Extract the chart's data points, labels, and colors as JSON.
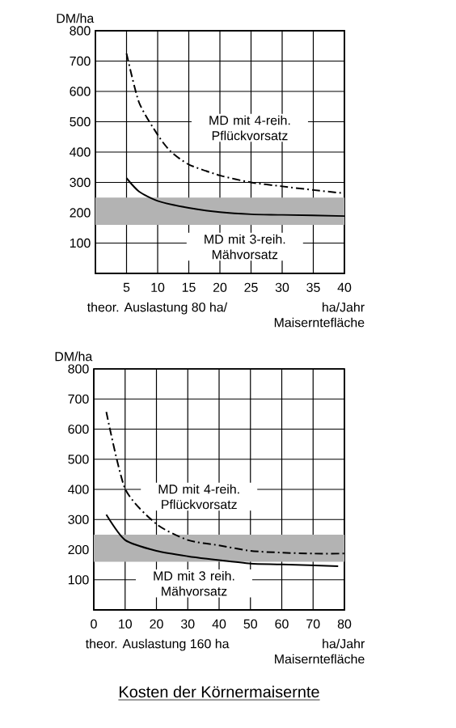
{
  "chart_data": [
    {
      "type": "line",
      "ylabel": "DM/ha",
      "xlabel": "ha/Jahr Maiserntefläche",
      "annotations": [
        "theor. Auslastung 80 ha/"
      ],
      "xlim": [
        0,
        40
      ],
      "ylim": [
        0,
        800
      ],
      "xticks": [
        5,
        10,
        15,
        20,
        25,
        30,
        35,
        40
      ],
      "yticks": [
        100,
        200,
        300,
        400,
        500,
        600,
        700,
        800
      ],
      "grid": true,
      "marker": "none",
      "bands": [
        {
          "axis": "y",
          "from": 160,
          "to": 250,
          "color": "#b3b3b3"
        }
      ],
      "series": [
        {
          "name": "MD mit 4-reih. Pflückvorsatz",
          "color": "#000000",
          "line_style": "dashed",
          "x": [
            5,
            7,
            10,
            12,
            15,
            20,
            25,
            30,
            35,
            40
          ],
          "values": [
            725,
            564,
            457,
            404,
            359,
            323,
            300,
            287,
            275,
            264
          ]
        },
        {
          "name": "MD mit 3-reih. Mähvorsatz",
          "color": "#000000",
          "line_style": "solid",
          "x": [
            5,
            7,
            10,
            15,
            20,
            25,
            30,
            40
          ],
          "values": [
            314,
            270,
            239,
            216,
            202,
            195,
            193,
            189
          ]
        }
      ]
    },
    {
      "type": "line",
      "ylabel": "DM/ha",
      "xlabel": "ha/Jahr Maiserntefläche",
      "annotations": [
        "theor. Auslastung 160 ha",
        "Kosten der Körnermaisernte"
      ],
      "xlim": [
        0,
        80
      ],
      "ylim": [
        0,
        800
      ],
      "xticks": [
        0,
        10,
        20,
        30,
        40,
        50,
        60,
        70,
        80
      ],
      "yticks": [
        100,
        200,
        300,
        400,
        500,
        600,
        700,
        800
      ],
      "grid": true,
      "marker": "none",
      "bands": [
        {
          "axis": "y",
          "from": 160,
          "to": 250,
          "color": "#b3b3b3"
        }
      ],
      "series": [
        {
          "name": "MD mit 4-reih. Pflückvorsatz",
          "color": "#000000",
          "line_style": "dashed",
          "x": [
            4,
            10,
            20,
            30,
            40,
            50,
            60,
            70,
            80
          ],
          "values": [
            657,
            402,
            285,
            232,
            214,
            196,
            190,
            187,
            187
          ]
        },
        {
          "name": "MD mit 3 reih. Mähvorsatz",
          "color": "#000000",
          "line_style": "solid",
          "x": [
            4,
            10,
            20,
            30,
            40,
            50,
            60,
            78
          ],
          "values": [
            316,
            232,
            196,
            178,
            165,
            154,
            151,
            145
          ]
        }
      ]
    }
  ]
}
